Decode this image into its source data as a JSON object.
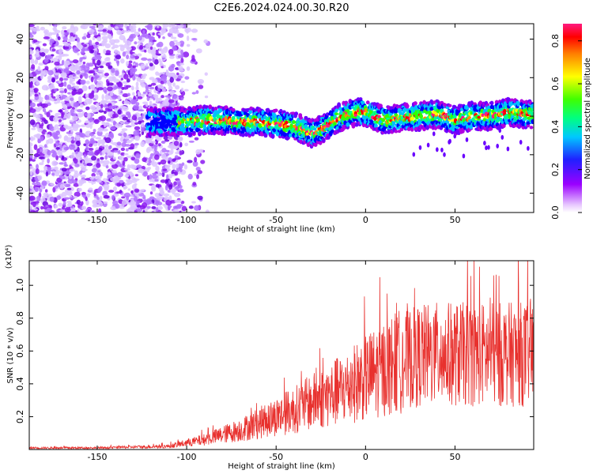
{
  "page": {
    "title": "C2E6.2024.024.00.30.R20"
  },
  "chart_data": [
    {
      "type": "heatmap",
      "title": "C2E6.2024.024.00.30.R20",
      "xlabel": "Height of straight line (km)",
      "ylabel": "Frequency (Hz)",
      "xlim": [
        -188,
        94
      ],
      "ylim": [
        -50,
        48
      ],
      "xticks": [
        -150,
        -100,
        -50,
        0,
        50
      ],
      "yticks": [
        -40,
        -20,
        0,
        20,
        40
      ],
      "grid": false,
      "colorbar": {
        "label": "Normalized spectral amplitude",
        "range": [
          0.0,
          0.88
        ],
        "ticks": [
          0.0,
          0.2,
          0.4,
          0.6,
          0.8
        ],
        "colormap": "rainbow",
        "colors": [
          "#ffffff",
          "#b000e0",
          "#6a00ff",
          "#0000ff",
          "#00c0ff",
          "#00ff90",
          "#30ff00",
          "#ffff00",
          "#ff9000",
          "#ff0000",
          "#ff1a80"
        ]
      },
      "noise_region_x": [
        -188,
        -88
      ],
      "ridge": {
        "x": [
          -120,
          -110,
          -100,
          -90,
          -80,
          -70,
          -60,
          -50,
          -40,
          -30,
          -25,
          -20,
          -15,
          -10,
          -5,
          0,
          10,
          20,
          30,
          40,
          50,
          60,
          70,
          80,
          90
        ],
        "y": [
          -3,
          -3,
          -3,
          -2,
          -2,
          -3,
          -3,
          -4,
          -5,
          -9,
          -7,
          -4,
          -1,
          1,
          2,
          2,
          -2,
          -1,
          0,
          1,
          -2,
          0,
          0,
          2,
          1
        ]
      }
    },
    {
      "type": "line",
      "xlabel": "Height of straight line (km)",
      "ylabel": "SNR (10 * v/v)",
      "yscale_label": "(x10⁴)",
      "xlim": [
        -188,
        94
      ],
      "ylim": [
        0,
        1.15
      ],
      "xticks": [
        -150,
        -100,
        -50,
        0,
        50
      ],
      "yticks": [
        0.2,
        0.4,
        0.6,
        0.8,
        1.0
      ],
      "grid": false,
      "series": [
        {
          "color": "#e8312e",
          "trend_x": [
            -188,
            -150,
            -110,
            -100,
            -90,
            -80,
            -70,
            -60,
            -50,
            -40,
            -30,
            -20,
            -10,
            0,
            10,
            20,
            30,
            40,
            50,
            60,
            70,
            80,
            94
          ],
          "trend_y": [
            0.01,
            0.01,
            0.02,
            0.04,
            0.06,
            0.09,
            0.12,
            0.16,
            0.2,
            0.24,
            0.29,
            0.33,
            0.38,
            0.44,
            0.49,
            0.54,
            0.57,
            0.58,
            0.58,
            0.58,
            0.58,
            0.58,
            0.58
          ]
        }
      ]
    }
  ]
}
